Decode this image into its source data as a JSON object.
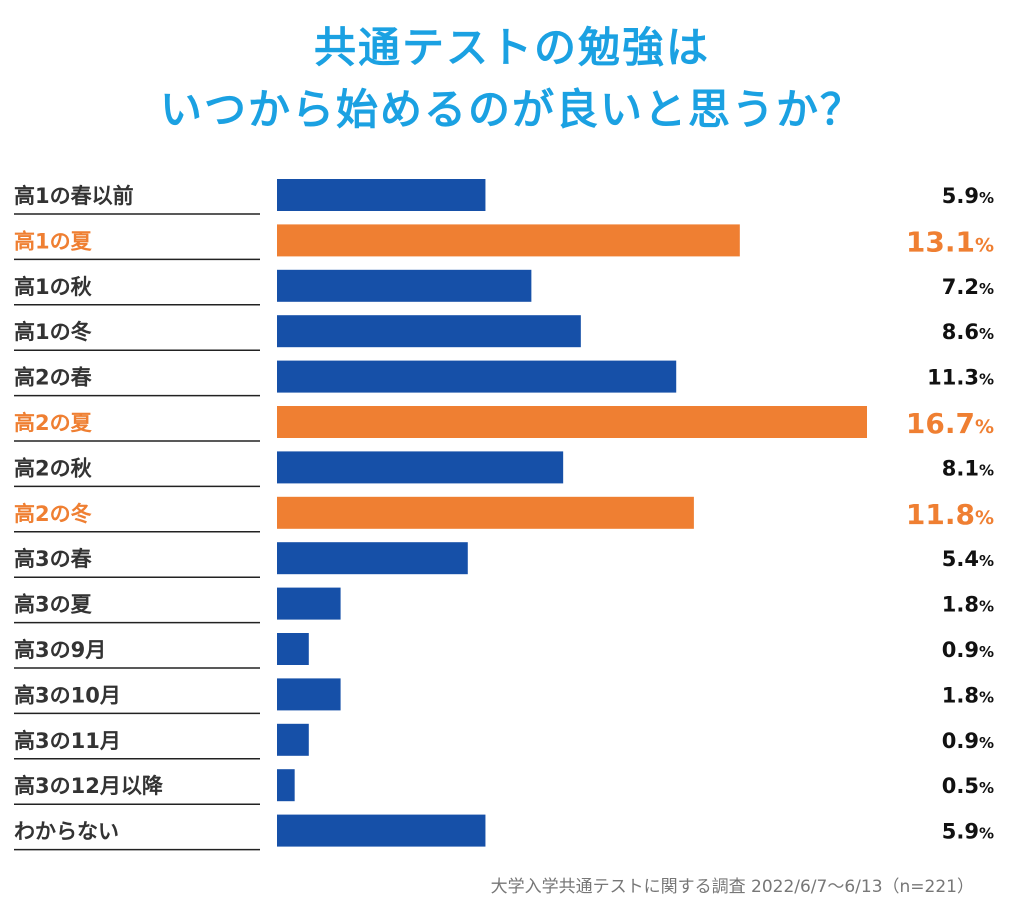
{
  "title": {
    "line1": "共通テストの勉強は",
    "line2": "いつから始めるのが良いと思うか？"
  },
  "footer": "大学入学共通テストに関する調査 2022/6/7〜6/13（n=221）",
  "colors": {
    "title": "#1ba1e2",
    "bar_default": "#1650a8",
    "bar_highlight": "#ef7f32",
    "label_default": "#333333",
    "value_default": "#111111",
    "highlight_text": "#ef7f32",
    "footer": "#777777"
  },
  "chart_data": {
    "type": "bar",
    "orientation": "horizontal",
    "title": "共通テストの勉強はいつから始めるのが良いと思うか？",
    "xlabel": "",
    "ylabel": "",
    "xlim": [
      0,
      16.7
    ],
    "unit": "%",
    "categories": [
      "高1の春以前",
      "高1の夏",
      "高1の秋",
      "高1の冬",
      "高2の春",
      "高2の夏",
      "高2の秋",
      "高2の冬",
      "高3の春",
      "高3の夏",
      "高3の9月",
      "高3の10月",
      "高3の11月",
      "高3の12月以降",
      "わからない"
    ],
    "values": [
      5.9,
      13.1,
      7.2,
      8.6,
      11.3,
      16.7,
      8.1,
      11.8,
      5.4,
      1.8,
      0.9,
      1.8,
      0.9,
      0.5,
      5.9
    ],
    "value_labels": [
      "5.9",
      "13.1",
      "7.2",
      "8.6",
      "11.3",
      "16.7",
      "8.1",
      "11.8",
      "5.4",
      "1.8",
      "0.9",
      "1.8",
      "0.9",
      "0.5",
      "5.9"
    ],
    "highlighted": [
      "高1の夏",
      "高2の夏",
      "高2の冬"
    ]
  }
}
